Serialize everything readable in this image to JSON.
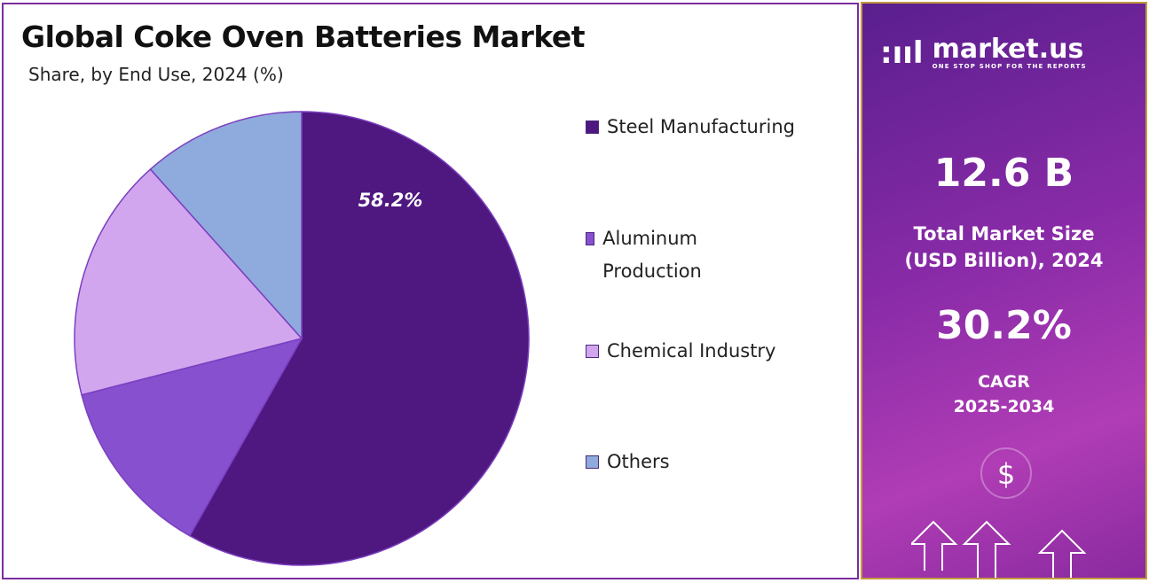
{
  "chart_data": {
    "type": "pie",
    "title": "Global Coke Oven Batteries Market",
    "subtitle": "Share, by End Use, 2024 (%)",
    "categories": [
      "Steel Manufacturing",
      "Aluminum Production",
      "Chemical Industry",
      "Others"
    ],
    "values": [
      58.2,
      12.8,
      17.4,
      11.6
    ],
    "data_labels": [
      "58.2%",
      "",
      "",
      ""
    ],
    "colors": [
      "#4f1780",
      "#8650cf",
      "#d2a6ee",
      "#8faadc"
    ],
    "legend_position": "right",
    "legend": [
      "Steel Manufacturing",
      "Aluminum Production",
      "Chemical Industry",
      "Others"
    ]
  },
  "sidebar": {
    "brand": "market.us",
    "tagline": "ONE STOP SHOP FOR THE REPORTS",
    "market_size": "12.6 B",
    "market_size_label_1": "Total Market Size",
    "market_size_label_2": "(USD Billion), 2024",
    "cagr": "30.2%",
    "cagr_label_1": "CAGR",
    "cagr_label_2": "2025-2034",
    "icon": "dollar-arrows-icon"
  }
}
